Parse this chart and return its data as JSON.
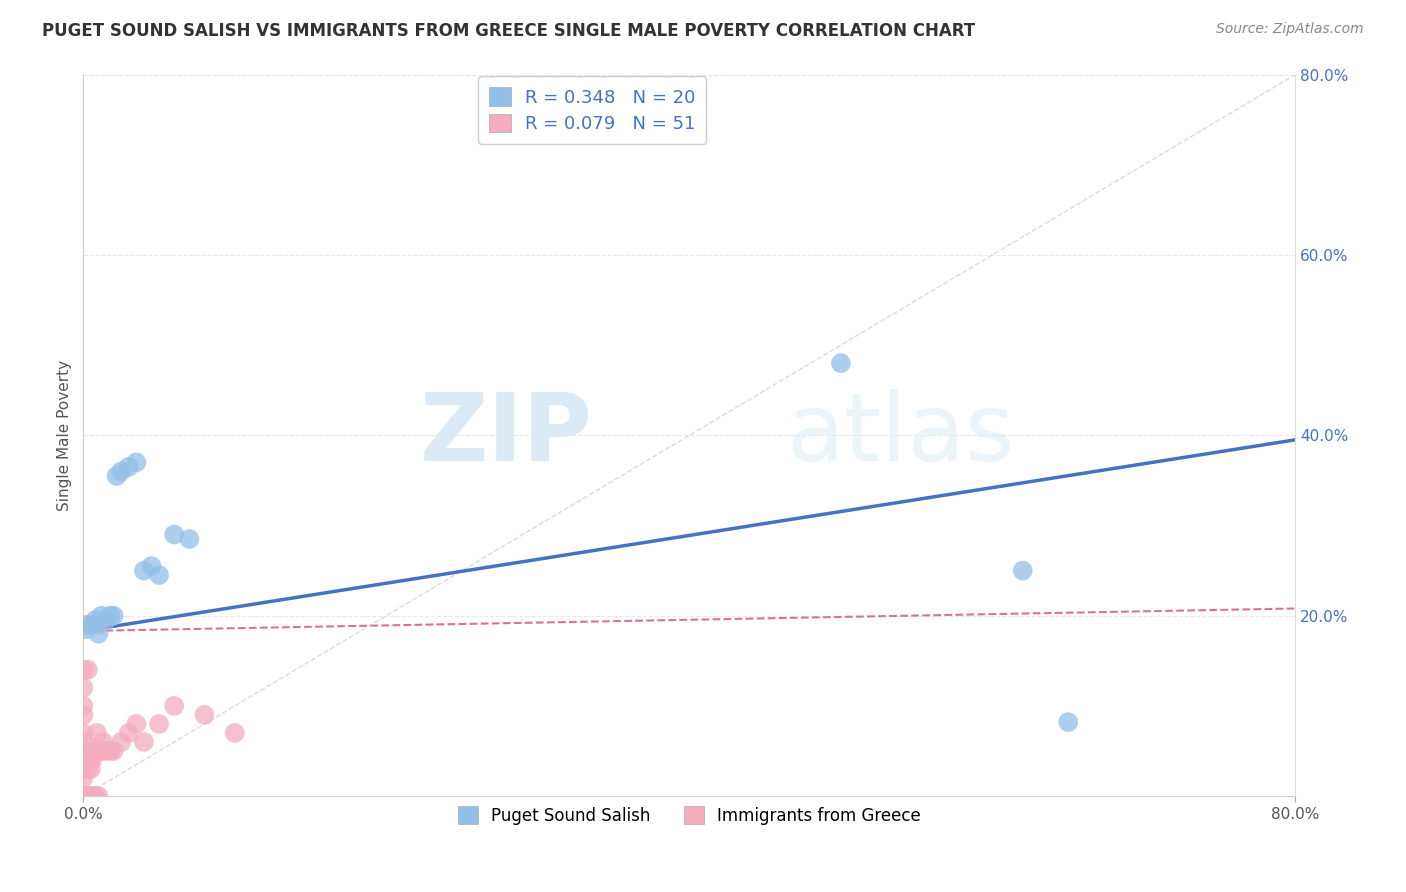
{
  "title": "PUGET SOUND SALISH VS IMMIGRANTS FROM GREECE SINGLE MALE POVERTY CORRELATION CHART",
  "source": "Source: ZipAtlas.com",
  "ylabel": "Single Male Poverty",
  "xlim": [
    0.0,
    0.8
  ],
  "ylim": [
    0.0,
    0.8
  ],
  "xtick_vals": [
    0.0,
    0.8
  ],
  "xtick_labels": [
    "0.0%",
    "80.0%"
  ],
  "right_ytick_vals": [
    0.2,
    0.4,
    0.6,
    0.8
  ],
  "right_ytick_labels": [
    "20.0%",
    "40.0%",
    "60.0%",
    "80.0%"
  ],
  "blue_color": "#92C0E8",
  "pink_color": "#F4ACBE",
  "blue_line_color": "#4472C4",
  "pink_line_color": "#E07090",
  "diag_color": "#CCCCCC",
  "R_blue": 0.348,
  "N_blue": 20,
  "R_pink": 0.079,
  "N_pink": 51,
  "blue_scatter_x": [
    0.002,
    0.005,
    0.008,
    0.01,
    0.012,
    0.015,
    0.018,
    0.02,
    0.022,
    0.025,
    0.03,
    0.035,
    0.04,
    0.045,
    0.05,
    0.06,
    0.07,
    0.5,
    0.62,
    0.65
  ],
  "blue_scatter_y": [
    0.185,
    0.19,
    0.195,
    0.18,
    0.2,
    0.195,
    0.2,
    0.2,
    0.355,
    0.36,
    0.365,
    0.37,
    0.25,
    0.255,
    0.245,
    0.29,
    0.285,
    0.48,
    0.25,
    0.082
  ],
  "pink_scatter_x": [
    0.0,
    0.0,
    0.0,
    0.0,
    0.0,
    0.0,
    0.0,
    0.0,
    0.0,
    0.0,
    0.0,
    0.0,
    0.0,
    0.0,
    0.0,
    0.001,
    0.001,
    0.001,
    0.002,
    0.002,
    0.002,
    0.003,
    0.003,
    0.003,
    0.004,
    0.004,
    0.005,
    0.005,
    0.006,
    0.006,
    0.007,
    0.007,
    0.008,
    0.008,
    0.009,
    0.01,
    0.01,
    0.01,
    0.012,
    0.013,
    0.015,
    0.018,
    0.02,
    0.025,
    0.03,
    0.035,
    0.04,
    0.05,
    0.06,
    0.08,
    0.1
  ],
  "pink_scatter_y": [
    0.0,
    0.0,
    0.0,
    0.0,
    0.0,
    0.02,
    0.03,
    0.05,
    0.06,
    0.07,
    0.09,
    0.1,
    0.12,
    0.14,
    0.19,
    0.0,
    0.0,
    0.05,
    0.0,
    0.04,
    0.19,
    0.0,
    0.03,
    0.14,
    0.0,
    0.04,
    0.0,
    0.03,
    0.0,
    0.04,
    0.0,
    0.05,
    0.0,
    0.05,
    0.07,
    0.0,
    0.05,
    0.19,
    0.05,
    0.06,
    0.05,
    0.05,
    0.05,
    0.06,
    0.07,
    0.08,
    0.06,
    0.08,
    0.1,
    0.09,
    0.07
  ],
  "blue_line_x0": 0.0,
  "blue_line_y0": 0.183,
  "blue_line_x1": 0.8,
  "blue_line_y1": 0.395,
  "pink_line_x0": 0.0,
  "pink_line_y0": 0.183,
  "pink_line_x1": 0.8,
  "pink_line_y1": 0.208,
  "watermark_zip": "ZIP",
  "watermark_atlas": "atlas",
  "legend_label_blue": "Puget Sound Salish",
  "legend_label_pink": "Immigrants from Greece",
  "background_color": "#FFFFFF",
  "grid_color": "#E8E8E8",
  "grid_hline_vals": [
    0.2,
    0.4,
    0.6,
    0.8
  ]
}
